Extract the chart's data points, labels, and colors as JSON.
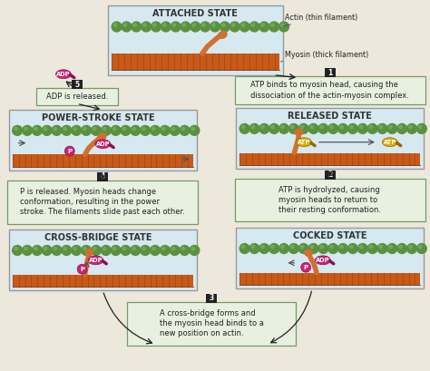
{
  "bg_color": "#ede8dc",
  "panel_bg": "#d6e8f0",
  "panel_border": "#999999",
  "actin_color": "#5a9040",
  "actin_highlight": "#7ab860",
  "myosin_body_color": "#c85a18",
  "myosin_stripe": "#a04010",
  "myosin_head_color": "#d07030",
  "adp_color": "#cc2277",
  "adp_dark": "#881155",
  "atp_color": "#ddaa00",
  "p_color": "#cc2277",
  "arrow_color": "#222222",
  "label_box_bg": "#e8f0e0",
  "label_box_border": "#779966",
  "num_badge_bg": "#222222",
  "num_badge_fg": "#ffffff",
  "text_color": "#222222",
  "title_color": "#333333",
  "white": "#ffffff",
  "states": {
    "attached": "ATTACHED STATE",
    "released": "RELEASED STATE",
    "cocked": "COCKED STATE",
    "crossbridge": "CROSS-BRIDGE STATE",
    "powerstroke": "POWER-STROKE STATE"
  },
  "labels": {
    "actin": "Actin (thin filament)",
    "myosin": "Myosin (thick filament)",
    "step1": "ATP binds to myosin head, causing the\ndissociation of the actin-myosin complex.",
    "step2": "ATP is hydrolyzed, causing\nmyosin heads to return to\ntheir resting conformation.",
    "step3": "A cross-bridge forms and\nthe myosin head binds to a\nnew position on actin.",
    "step4": "P is released. Myosin heads change\nconformation, resulting in the power\nstroke. The filaments slide past each other.",
    "step5": "ADP is released."
  },
  "figsize": [
    4.74,
    4.09
  ],
  "dpi": 100
}
